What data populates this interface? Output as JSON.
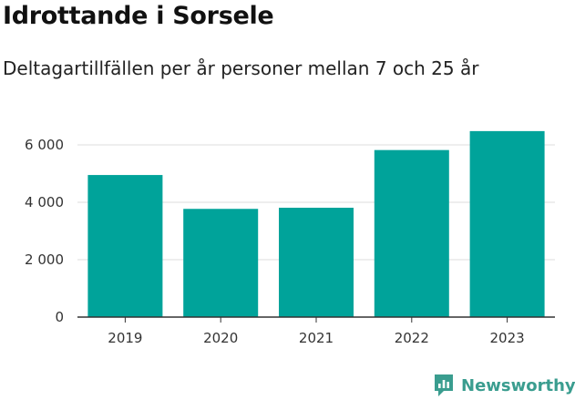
{
  "title": "Idrottande i Sorsele",
  "subtitle": "Deltagartillfällen per år personer mellan 7 och 25 år",
  "brand": {
    "name": "Newsworthy",
    "color": "#3a9d8f"
  },
  "chart_data": {
    "type": "bar",
    "categories": [
      "2019",
      "2020",
      "2021",
      "2022",
      "2023"
    ],
    "values": [
      4950,
      3770,
      3810,
      5820,
      6480
    ],
    "ylim": [
      0,
      6700
    ],
    "yticks": [
      0,
      2000,
      4000,
      6000
    ],
    "ytick_labels": [
      "0",
      "2 000",
      "4 000",
      "6 000"
    ],
    "bar_color": "#00a39a",
    "grid": true
  }
}
